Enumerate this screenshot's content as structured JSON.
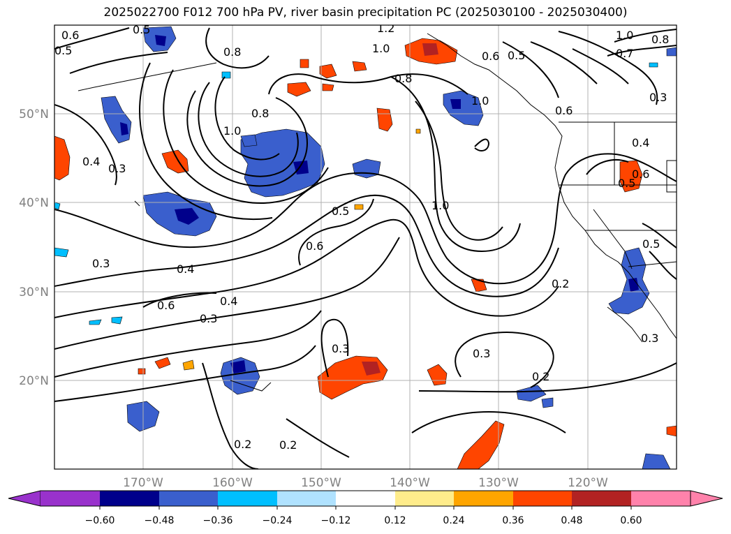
{
  "title": "2025022700 F012 700 hPa PV, river basin precipitation PC (2025030100 - 2025030400)",
  "lon_labels": [
    "170°W",
    "160°W",
    "150°W",
    "140°W",
    "130°W",
    "120°W"
  ],
  "lat_labels": [
    "50°N",
    "40°N",
    "30°N",
    "20°N"
  ],
  "contour_labels": [
    "0.6",
    "0.5",
    "0.5",
    "1.2",
    "1.0",
    "0.8",
    "0.6",
    "0.5",
    "1.0",
    "0.7",
    "0.8",
    "0.3",
    "0.4",
    "0.3",
    "1.0",
    "0.8",
    "0.8",
    "1.0",
    "0.6",
    "0.4",
    "0.6",
    "0.5",
    "0.5",
    "0.6",
    "1.0",
    "0.3",
    "0.4",
    "0.6",
    "0.4",
    "0.3",
    "0.3",
    "0.2",
    "0.2",
    "0.2",
    "0.3",
    "0.2",
    "0.5",
    "0.3"
  ],
  "colorbar": {
    "ticks": [
      "−0.60",
      "−0.48",
      "−0.36",
      "−0.24",
      "−0.12",
      "0.12",
      "0.24",
      "0.36",
      "0.48",
      "0.60"
    ],
    "colors": [
      "#9932cc",
      "#00008b",
      "#3a5fcd",
      "#00bfff",
      "#b0e2ff",
      "#ffffff",
      "#ffec8b",
      "#ffa500",
      "#ff4500",
      "#b22222",
      "#ff82ab"
    ]
  }
}
